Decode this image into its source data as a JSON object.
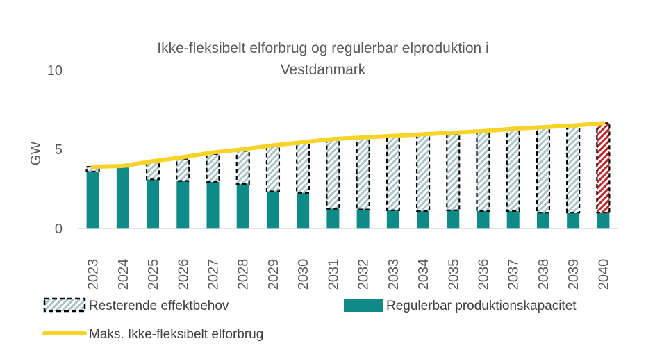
{
  "chart_data": {
    "type": "bar",
    "title_lines": [
      "Ikke-fleksibelt elforbrug og regulerbar elproduktion i",
      "Vestdanmark"
    ],
    "ylabel": "GW",
    "ylim": [
      0,
      10
    ],
    "yticks": [
      "0",
      "5",
      "10"
    ],
    "grid": false,
    "stacked": true,
    "categories": [
      "2023",
      "2024",
      "2025",
      "2026",
      "2027",
      "2028",
      "2029",
      "2030",
      "2031",
      "2032",
      "2033",
      "2034",
      "2035",
      "2036",
      "2037",
      "2038",
      "2039",
      "2040"
    ],
    "series": [
      {
        "name": "Regulerbar produktionskapacitet",
        "kind": "bar",
        "color": "#0e8a87",
        "values": [
          3.6,
          3.85,
          3.1,
          3.0,
          2.95,
          2.8,
          2.35,
          2.25,
          1.25,
          1.2,
          1.15,
          1.1,
          1.15,
          1.1,
          1.1,
          1.0,
          1.0,
          1.0
        ]
      },
      {
        "name": "Resterende effektbehov",
        "kind": "bar-hatched",
        "color": "#a9c4c8",
        "highlight_color": "#c0272d",
        "highlight_index": 17,
        "values": [
          0.3,
          0.0,
          1.1,
          1.4,
          1.75,
          2.1,
          2.85,
          3.15,
          4.35,
          4.5,
          4.65,
          4.8,
          4.8,
          5.0,
          5.15,
          5.35,
          5.45,
          5.65
        ]
      },
      {
        "name": "Maks. Ikke-fleksibelt elforbrug",
        "kind": "line",
        "color": "#f5d327",
        "values": [
          3.9,
          3.95,
          4.25,
          4.5,
          4.8,
          5.0,
          5.25,
          5.45,
          5.65,
          5.75,
          5.85,
          5.95,
          6.05,
          6.15,
          6.3,
          6.4,
          6.5,
          6.65
        ]
      }
    ],
    "legend": {
      "placement": "bottom",
      "items": [
        "Resterende effektbehov",
        "Regulerbar produktionskapacitet",
        "Maks. Ikke-fleksibelt elforbrug"
      ]
    }
  }
}
